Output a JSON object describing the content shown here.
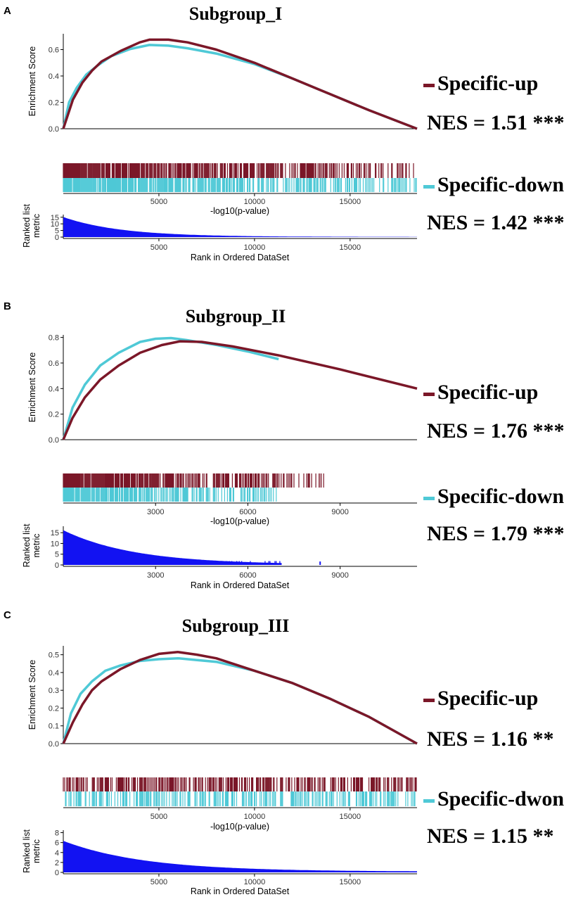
{
  "colors": {
    "up": "#7b1728",
    "down": "#4fc9d6",
    "metric": "#1212f2",
    "axis": "#000000",
    "text": "#000000"
  },
  "chart_data": [
    {
      "type": "line",
      "panel_label": "A",
      "title": "Subgroup_I",
      "ylabel": "Enrichment Score",
      "xlabel": "-log10(p-value)",
      "metric_xlabel": "Rank in Ordered DataSet",
      "metric_ylabel_line1": "Ranked list",
      "metric_ylabel_line2": "metric",
      "xlim": [
        0,
        18500
      ],
      "ylim": [
        0,
        0.72
      ],
      "yticks": [
        0.0,
        0.2,
        0.4,
        0.6
      ],
      "ytick_labels": [
        "0.0",
        "0.2",
        "0.4",
        "0.6"
      ],
      "xticks": [
        5000,
        10000,
        15000
      ],
      "xtick_labels": [
        "5000",
        "10000",
        "15000"
      ],
      "metric_ylim": [
        0,
        17
      ],
      "metric_yticks": [
        0,
        5,
        10,
        15
      ],
      "metric_ytick_labels": [
        "0",
        "5",
        "10",
        "15"
      ],
      "metric_start": 15,
      "metric_decay": 3000,
      "metric_end": 18500,
      "series": [
        {
          "name": "Specific-up",
          "nes_text": "NES = 1.51 ***",
          "x": [
            0,
            500,
            1000,
            1500,
            2000,
            3000,
            4000,
            4500,
            5500,
            6500,
            8000,
            10000,
            12000,
            14000,
            16000,
            18500
          ],
          "y": [
            0,
            0.22,
            0.35,
            0.44,
            0.51,
            0.59,
            0.655,
            0.675,
            0.675,
            0.655,
            0.6,
            0.5,
            0.38,
            0.26,
            0.14,
            0
          ],
          "rug_density": 0.45
        },
        {
          "name": "Specific-down",
          "nes_text": "NES = 1.42 ***",
          "x": [
            0,
            300,
            700,
            1200,
            1800,
            2500,
            3500,
            4500,
            5500,
            6500,
            8000,
            10000,
            12000,
            14000,
            16000,
            18500
          ],
          "y": [
            0,
            0.2,
            0.31,
            0.41,
            0.48,
            0.55,
            0.605,
            0.635,
            0.63,
            0.61,
            0.57,
            0.49,
            0.38,
            0.26,
            0.14,
            0
          ],
          "rug_density": 0.6
        }
      ]
    },
    {
      "type": "line",
      "panel_label": "B",
      "title": "Subgroup_II",
      "ylabel": "Enrichment Score",
      "xlabel": "-log10(p-value)",
      "metric_xlabel": "Rank in Ordered DataSet",
      "metric_ylabel_line1": "Ranked list",
      "metric_ylabel_line2": "metric",
      "xlim": [
        0,
        11500
      ],
      "ylim": [
        0,
        0.82
      ],
      "yticks": [
        0.0,
        0.2,
        0.4,
        0.6,
        0.8
      ],
      "ytick_labels": [
        "0.0",
        "0.2",
        "0.4",
        "0.6",
        "0.8"
      ],
      "xticks": [
        3000,
        6000,
        9000
      ],
      "xtick_labels": [
        "3000",
        "6000",
        "9000"
      ],
      "metric_ylim": [
        0,
        18
      ],
      "metric_yticks": [
        0,
        5,
        10,
        15
      ],
      "metric_ytick_labels": [
        "0",
        "5",
        "10",
        "15"
      ],
      "metric_start": 16,
      "metric_decay": 2300,
      "metric_end": 7100,
      "series": [
        {
          "name": "Specific-up",
          "nes_text": "NES = 1.76 ***",
          "x": [
            0,
            300,
            700,
            1200,
            1800,
            2500,
            3200,
            3800,
            4500,
            5500,
            7000,
            9000,
            11500
          ],
          "y": [
            0,
            0.17,
            0.33,
            0.47,
            0.58,
            0.68,
            0.74,
            0.77,
            0.765,
            0.73,
            0.66,
            0.55,
            0.4
          ],
          "rug_end": 8500,
          "rug_density": 0.55
        },
        {
          "name": "Specific-down",
          "nes_text": "NES = 1.79 ***",
          "x": [
            0,
            300,
            700,
            1200,
            1800,
            2500,
            3000,
            3500,
            4000,
            5000,
            6000,
            7000
          ],
          "y": [
            0,
            0.25,
            0.43,
            0.58,
            0.68,
            0.765,
            0.79,
            0.795,
            0.78,
            0.74,
            0.69,
            0.63
          ],
          "rug_end": 7000,
          "rug_density": 0.5
        }
      ]
    },
    {
      "type": "line",
      "panel_label": "C",
      "title": "Subgroup_III",
      "ylabel": "Enrichment Score",
      "xlabel": "-log10(p-value)",
      "metric_xlabel": "Rank in Ordered DataSet",
      "metric_ylabel_line1": "Ranked list",
      "metric_ylabel_line2": "metric",
      "xlim": [
        0,
        18500
      ],
      "ylim": [
        0,
        0.55
      ],
      "yticks": [
        0.0,
        0.1,
        0.2,
        0.3,
        0.4,
        0.5
      ],
      "ytick_labels": [
        "0.0",
        "0.1",
        "0.2",
        "0.3",
        "0.4",
        "0.5"
      ],
      "xticks": [
        5000,
        10000,
        15000
      ],
      "xtick_labels": [
        "5000",
        "10000",
        "15000"
      ],
      "metric_ylim": [
        0,
        8.5
      ],
      "metric_yticks": [
        0,
        2,
        4,
        6,
        8
      ],
      "metric_ytick_labels": [
        "0",
        "2",
        "4",
        "6",
        "8"
      ],
      "metric_start": 6.2,
      "metric_decay": 4200,
      "metric_end": 18500,
      "series": [
        {
          "name": "Specific-up",
          "nes_text": "NES = 1.16 **",
          "x": [
            0,
            500,
            1000,
            1500,
            2000,
            3000,
            4000,
            5000,
            6000,
            7000,
            8000,
            10000,
            12000,
            14000,
            16000,
            18500
          ],
          "y": [
            0,
            0.12,
            0.22,
            0.3,
            0.35,
            0.42,
            0.47,
            0.505,
            0.515,
            0.5,
            0.48,
            0.41,
            0.34,
            0.25,
            0.15,
            0
          ],
          "rug_density": 0.55
        },
        {
          "name": "Specific-dwon",
          "nes_text": "NES = 1.15 **",
          "x": [
            0,
            400,
            900,
            1500,
            2200,
            3000,
            4000,
            5000,
            6000,
            7000,
            8000,
            10000,
            12000,
            14000,
            16000,
            18500
          ],
          "y": [
            0,
            0.17,
            0.28,
            0.35,
            0.41,
            0.44,
            0.465,
            0.475,
            0.48,
            0.47,
            0.46,
            0.41,
            0.34,
            0.25,
            0.15,
            0
          ],
          "rug_density": 0.5
        }
      ]
    }
  ]
}
